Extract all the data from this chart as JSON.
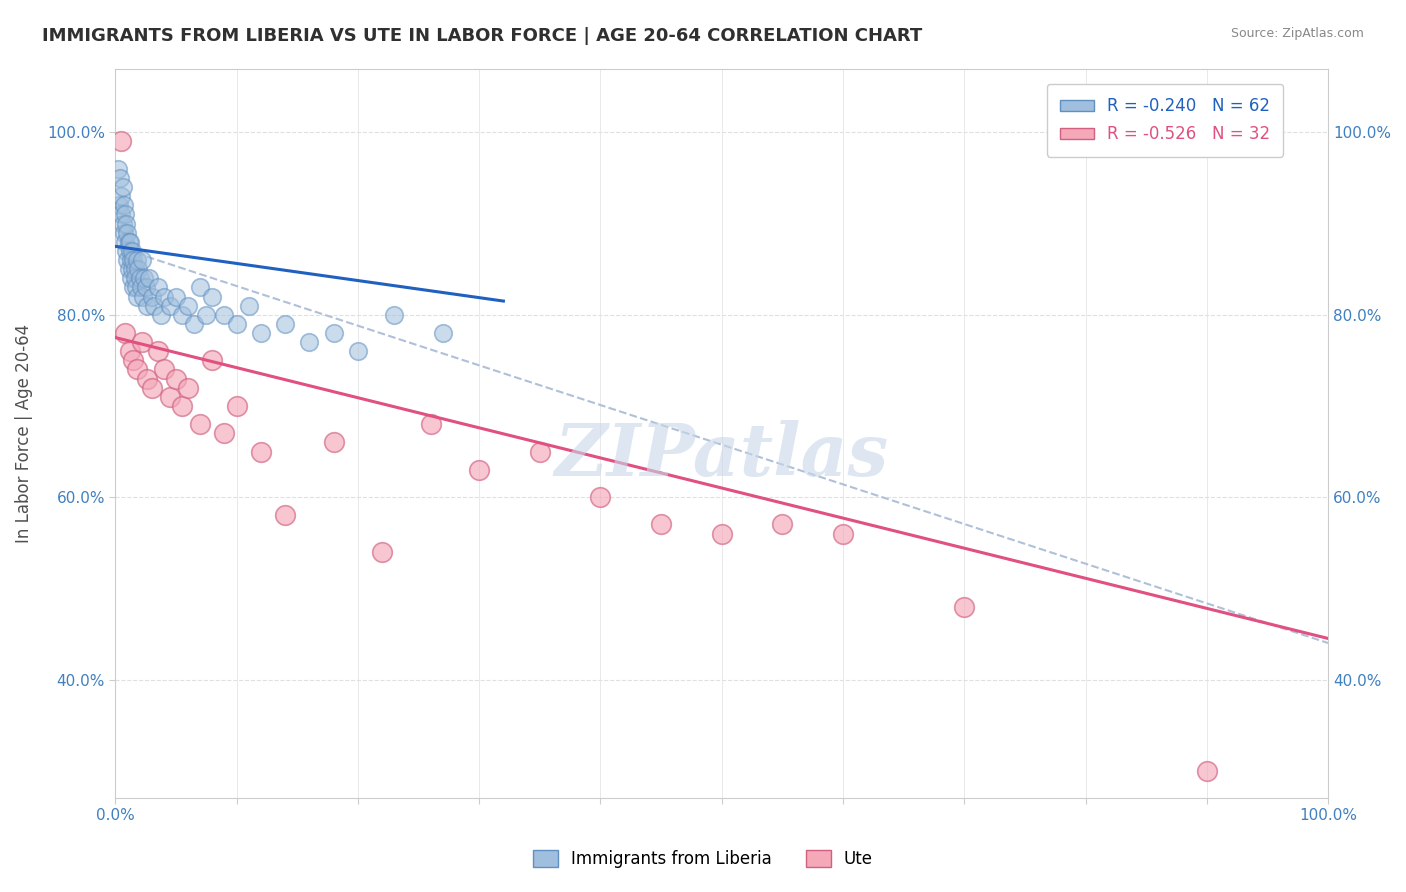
{
  "title": "IMMIGRANTS FROM LIBERIA VS UTE IN LABOR FORCE | AGE 20-64 CORRELATION CHART",
  "source_text": "Source: ZipAtlas.com",
  "ylabel": "In Labor Force | Age 20-64",
  "xlim": [
    0.0,
    1.0
  ],
  "ylim": [
    0.27,
    1.07
  ],
  "x_ticks": [
    0.0,
    0.1,
    0.2,
    0.3,
    0.4,
    0.5,
    0.6,
    0.7,
    0.8,
    0.9,
    1.0
  ],
  "y_ticks": [
    0.4,
    0.6,
    0.8,
    1.0
  ],
  "y_tick_labels": [
    "40.0%",
    "60.0%",
    "80.0%",
    "100.0%"
  ],
  "legend_entries": [
    {
      "label": "R = -0.240   N = 62",
      "color": "#a8c4e0"
    },
    {
      "label": "R = -0.526   N = 32",
      "color": "#f4a8b8"
    }
  ],
  "series": [
    {
      "name": "Immigrants from Liberia",
      "color": "#a0bedd",
      "edge_color": "#6090c0",
      "R": -0.24,
      "N": 62,
      "x": [
        0.002,
        0.003,
        0.004,
        0.005,
        0.005,
        0.006,
        0.006,
        0.007,
        0.007,
        0.008,
        0.008,
        0.009,
        0.009,
        0.01,
        0.01,
        0.011,
        0.011,
        0.012,
        0.012,
        0.013,
        0.013,
        0.014,
        0.014,
        0.015,
        0.015,
        0.016,
        0.016,
        0.017,
        0.018,
        0.018,
        0.019,
        0.02,
        0.021,
        0.022,
        0.023,
        0.024,
        0.025,
        0.026,
        0.028,
        0.03,
        0.032,
        0.035,
        0.038,
        0.04,
        0.045,
        0.05,
        0.055,
        0.06,
        0.065,
        0.07,
        0.075,
        0.08,
        0.09,
        0.1,
        0.11,
        0.12,
        0.14,
        0.16,
        0.18,
        0.2,
        0.23,
        0.27
      ],
      "y": [
        0.96,
        0.92,
        0.95,
        0.93,
        0.91,
        0.94,
        0.9,
        0.92,
        0.89,
        0.91,
        0.88,
        0.9,
        0.87,
        0.89,
        0.86,
        0.88,
        0.85,
        0.87,
        0.88,
        0.86,
        0.84,
        0.87,
        0.85,
        0.86,
        0.83,
        0.85,
        0.84,
        0.83,
        0.86,
        0.82,
        0.85,
        0.84,
        0.83,
        0.86,
        0.82,
        0.84,
        0.83,
        0.81,
        0.84,
        0.82,
        0.81,
        0.83,
        0.8,
        0.82,
        0.81,
        0.82,
        0.8,
        0.81,
        0.79,
        0.83,
        0.8,
        0.82,
        0.8,
        0.79,
        0.81,
        0.78,
        0.79,
        0.77,
        0.78,
        0.76,
        0.8,
        0.78
      ]
    },
    {
      "name": "Ute",
      "color": "#f4a8b8",
      "edge_color": "#d06080",
      "R": -0.526,
      "N": 32,
      "x": [
        0.005,
        0.008,
        0.012,
        0.015,
        0.018,
        0.022,
        0.026,
        0.03,
        0.035,
        0.04,
        0.045,
        0.05,
        0.055,
        0.06,
        0.07,
        0.08,
        0.09,
        0.1,
        0.12,
        0.14,
        0.18,
        0.22,
        0.26,
        0.3,
        0.35,
        0.4,
        0.45,
        0.5,
        0.55,
        0.6,
        0.7,
        0.9
      ],
      "y": [
        0.99,
        0.78,
        0.76,
        0.75,
        0.74,
        0.77,
        0.73,
        0.72,
        0.76,
        0.74,
        0.71,
        0.73,
        0.7,
        0.72,
        0.68,
        0.75,
        0.67,
        0.7,
        0.65,
        0.58,
        0.66,
        0.54,
        0.68,
        0.63,
        0.65,
        0.6,
        0.57,
        0.56,
        0.57,
        0.56,
        0.48,
        0.3
      ]
    }
  ],
  "blue_line_start_x": 0.0,
  "blue_line_start_y": 0.875,
  "blue_line_end_x": 0.32,
  "blue_line_end_y": 0.815,
  "pink_line_start_x": 0.0,
  "pink_line_start_y": 0.775,
  "pink_line_end_x": 1.0,
  "pink_line_end_y": 0.445,
  "dash_line_start_x": 0.0,
  "dash_line_start_y": 0.875,
  "dash_line_end_x": 1.0,
  "dash_line_end_y": 0.44,
  "watermark": "ZIPatlas",
  "watermark_color": "#c8d8e8",
  "bg_color": "#ffffff",
  "grid_color": "#e0e0e0",
  "title_color": "#303030",
  "axis_color": "#4080c0",
  "source_color": "#888888",
  "blue_line_color": "#2060c0",
  "pink_line_color": "#e05080",
  "dashed_line_color": "#b0c0d8"
}
